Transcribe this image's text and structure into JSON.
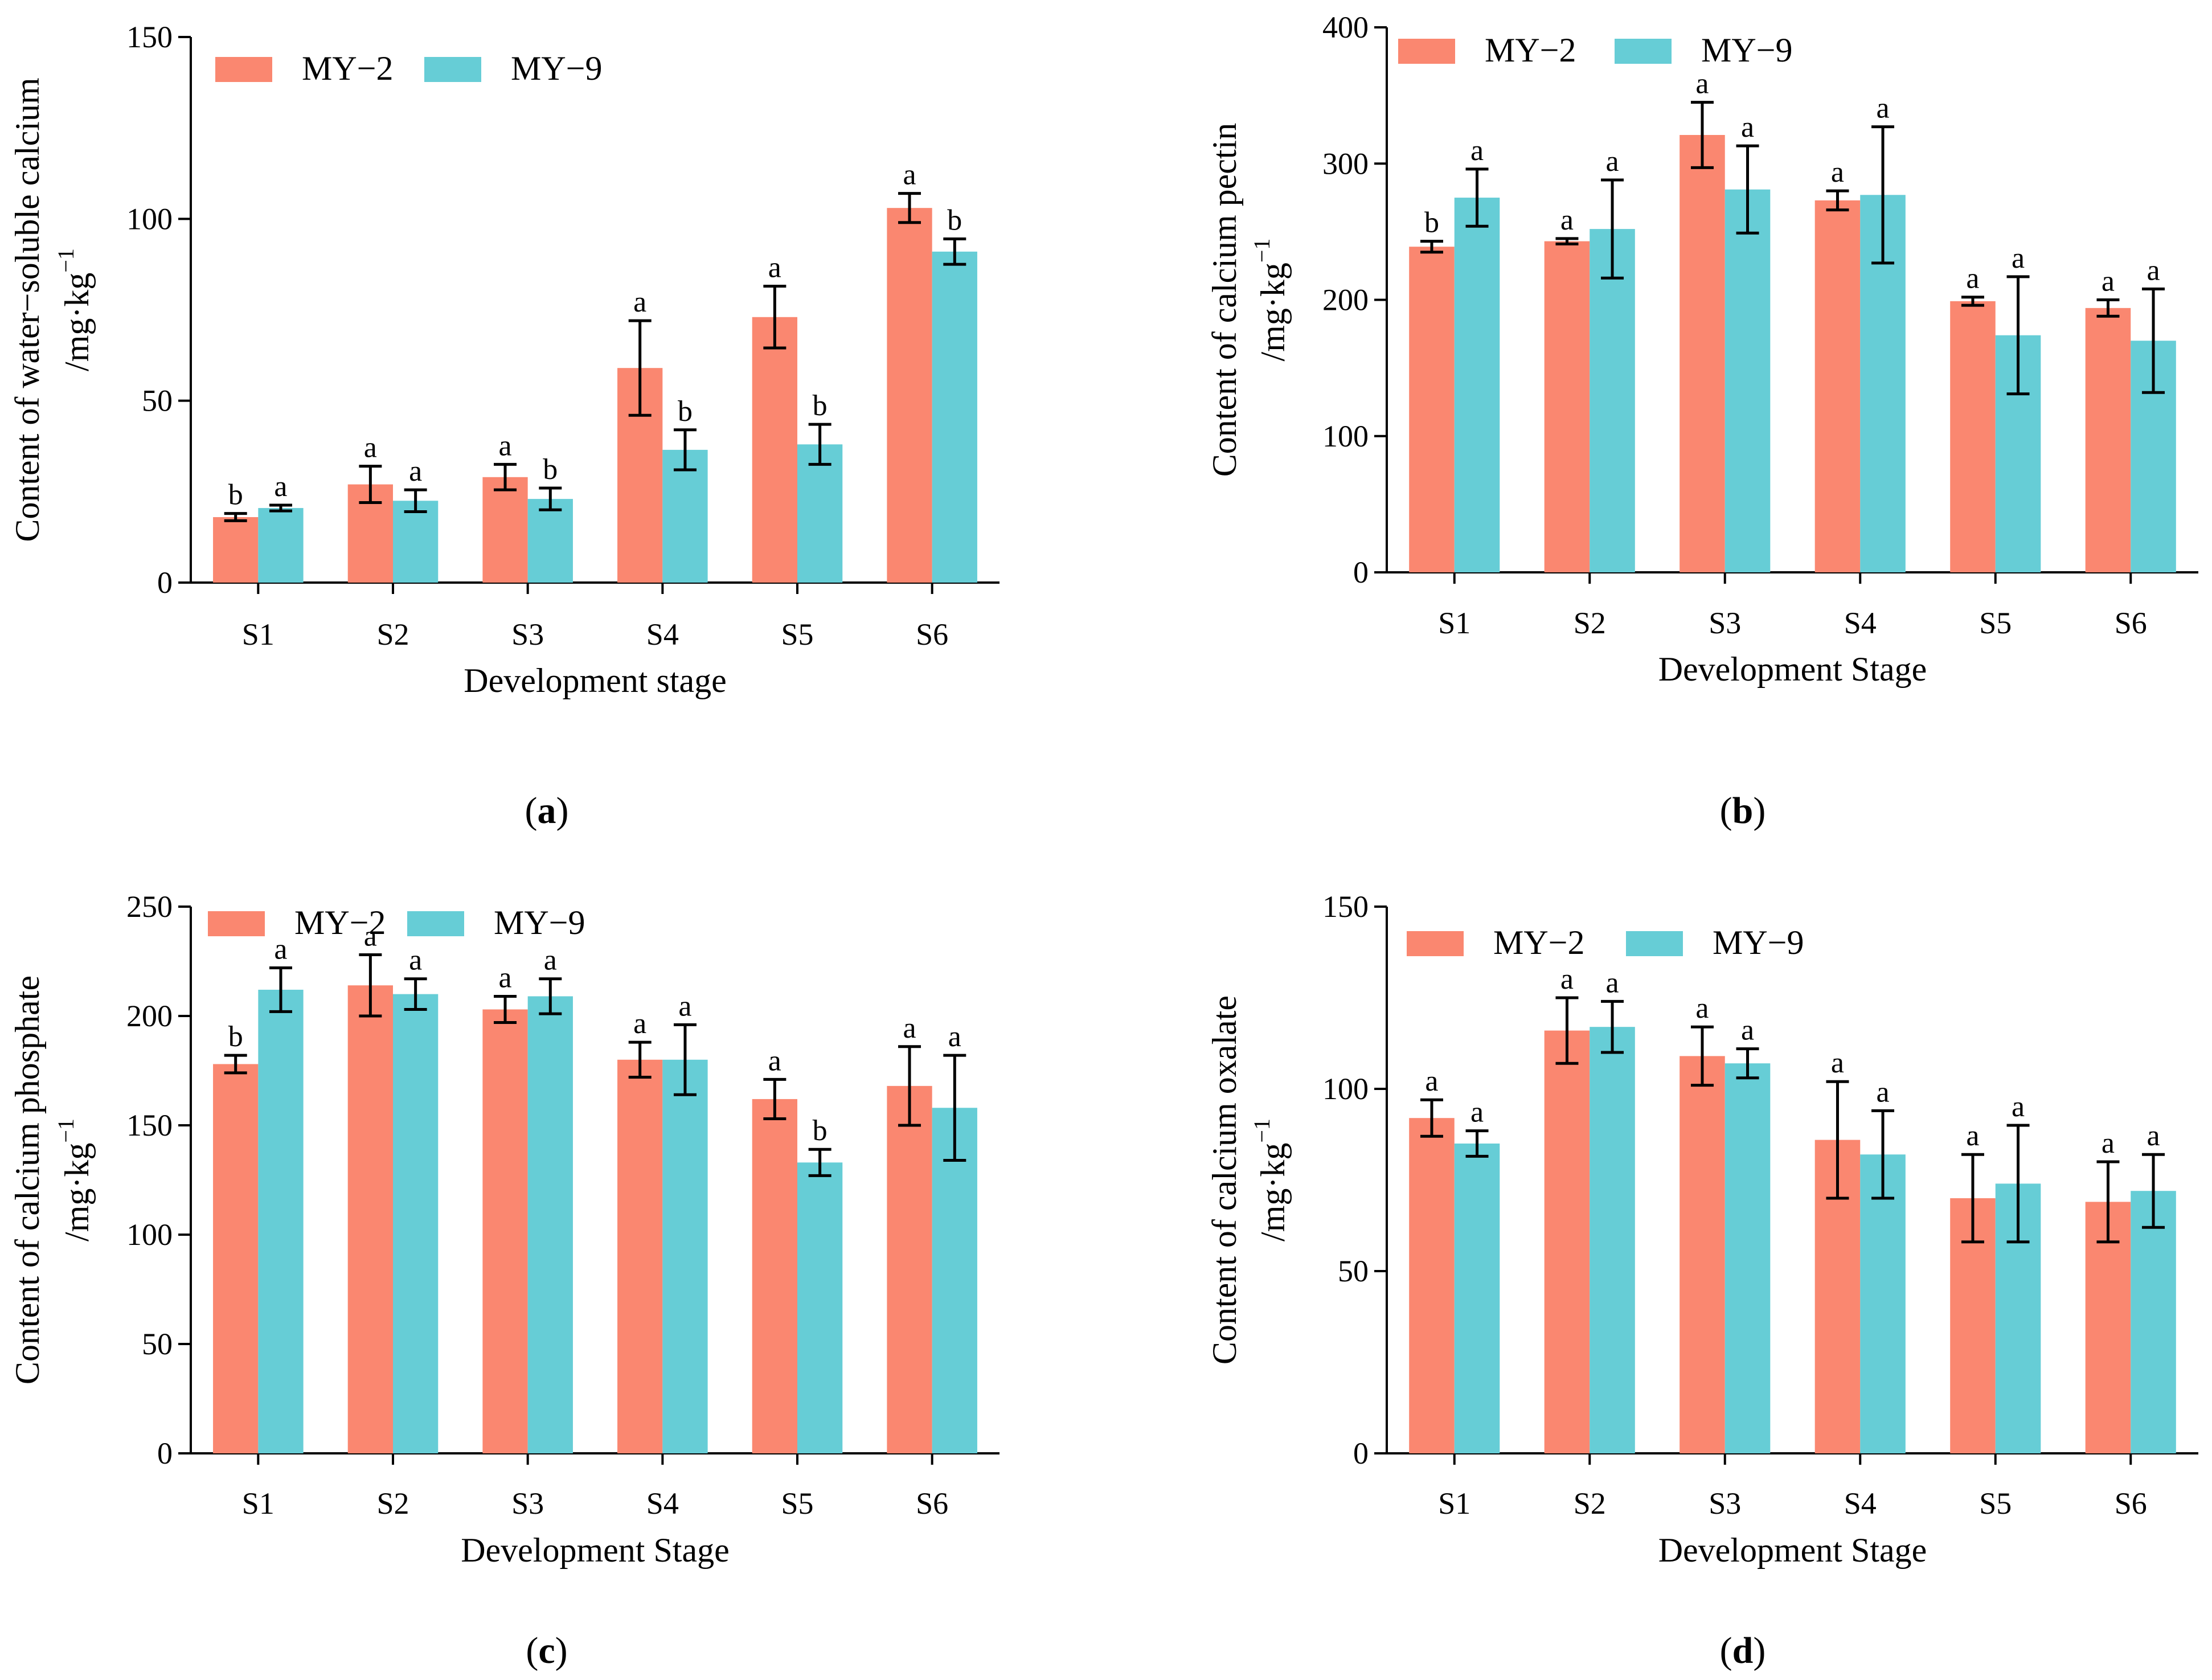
{
  "chart_data": [
    {
      "type": "bar",
      "panel": "(a)",
      "caption_letter": "a",
      "title": "",
      "ylabel": "Content of water−soluble calcium",
      "ylabel_unit": "/mg·kg",
      "ylabel_exp": "−1",
      "xlabel": "Development stage",
      "ylim": [
        0,
        150
      ],
      "yticks": [
        0,
        50,
        100,
        150
      ],
      "categories": [
        "S1",
        "S2",
        "S3",
        "S4",
        "S5",
        "S6"
      ],
      "series": [
        {
          "name": "MY−2",
          "values": [
            18,
            27,
            29,
            59,
            73,
            103
          ],
          "errors": [
            1,
            5,
            3.5,
            13,
            8.5,
            4
          ],
          "letters": [
            "b",
            "a",
            "a",
            "a",
            "a",
            "a"
          ]
        },
        {
          "name": "MY−9",
          "values": [
            20.5,
            22.5,
            23,
            36.5,
            38,
            91
          ],
          "errors": [
            0.8,
            3,
            3,
            5.5,
            5.5,
            3.5
          ],
          "letters": [
            "a",
            "a",
            "b",
            "b",
            "b",
            "b"
          ]
        }
      ],
      "legend_position": "top-left"
    },
    {
      "type": "bar",
      "panel": "(b)",
      "caption_letter": "b",
      "title": "",
      "ylabel": "Content of calcium pectin",
      "ylabel_unit": "/mg·kg",
      "ylabel_exp": "−1",
      "xlabel": "Development Stage",
      "ylim": [
        0,
        400
      ],
      "yticks": [
        0,
        100,
        200,
        300,
        400
      ],
      "categories": [
        "S1",
        "S2",
        "S3",
        "S4",
        "S5",
        "S6"
      ],
      "series": [
        {
          "name": "MY−2",
          "values": [
            239,
            243,
            321,
            273,
            199,
            194
          ],
          "errors": [
            4,
            2,
            24,
            7,
            3,
            6
          ],
          "letters": [
            "b",
            "a",
            "a",
            "a",
            "a",
            "a"
          ]
        },
        {
          "name": "MY−9",
          "values": [
            275,
            252,
            281,
            277,
            174,
            170
          ],
          "errors": [
            21,
            36,
            32,
            50,
            43,
            38
          ],
          "letters": [
            "a",
            "a",
            "a",
            "a",
            "a",
            "a"
          ]
        }
      ],
      "legend_position": "top"
    },
    {
      "type": "bar",
      "panel": "(c)",
      "caption_letter": "c",
      "title": "",
      "ylabel": "Content of calcium phosphate",
      "ylabel_unit": "/mg·kg",
      "ylabel_exp": "−1",
      "xlabel": "Development Stage",
      "ylim": [
        0,
        250
      ],
      "yticks": [
        0,
        50,
        100,
        150,
        200,
        250
      ],
      "categories": [
        "S1",
        "S2",
        "S3",
        "S4",
        "S5",
        "S6"
      ],
      "series": [
        {
          "name": "MY−2",
          "values": [
            178,
            214,
            203,
            180,
            162,
            168
          ],
          "errors": [
            4,
            14,
            6,
            8,
            9,
            18
          ],
          "letters": [
            "b",
            "a",
            "a",
            "a",
            "a",
            "a"
          ]
        },
        {
          "name": "MY−9",
          "values": [
            212,
            210,
            209,
            180,
            133,
            158
          ],
          "errors": [
            10,
            7,
            8,
            16,
            6,
            24
          ],
          "letters": [
            "a",
            "a",
            "a",
            "a",
            "b",
            "a"
          ]
        }
      ],
      "legend_position": "top"
    },
    {
      "type": "bar",
      "panel": "(d)",
      "caption_letter": "d",
      "title": "",
      "ylabel": "Content of calcium oxalate",
      "ylabel_unit": "/mg·kg",
      "ylabel_exp": "−1",
      "xlabel": "Development Stage",
      "ylim": [
        0,
        150
      ],
      "yticks": [
        0,
        50,
        100,
        150
      ],
      "categories": [
        "S1",
        "S2",
        "S3",
        "S4",
        "S5",
        "S6"
      ],
      "series": [
        {
          "name": "MY−2",
          "values": [
            92,
            116,
            109,
            86,
            70,
            69
          ],
          "errors": [
            5,
            9,
            8,
            16,
            12,
            11
          ],
          "letters": [
            "a",
            "a",
            "a",
            "a",
            "a",
            "a"
          ]
        },
        {
          "name": "MY−9",
          "values": [
            85,
            117,
            107,
            82,
            74,
            72
          ],
          "errors": [
            3.5,
            7,
            4,
            12,
            16,
            10
          ],
          "letters": [
            "a",
            "a",
            "a",
            "a",
            "a",
            "a"
          ]
        }
      ],
      "legend_position": "top"
    }
  ],
  "colors": {
    "MY-2": "#FA8770",
    "MY-9": "#66CDD6",
    "axis": "#000000"
  }
}
